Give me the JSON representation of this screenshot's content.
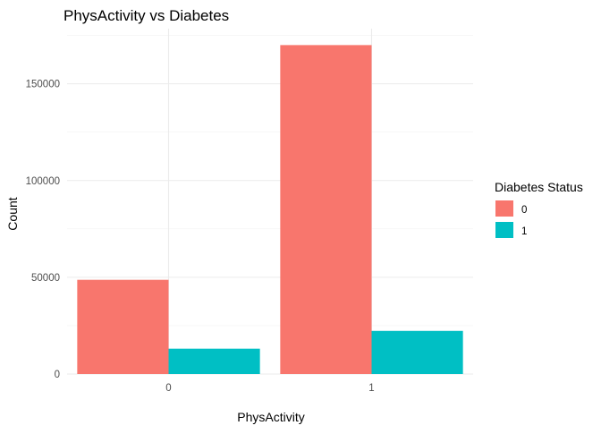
{
  "chart_data": {
    "type": "bar",
    "title": "PhysActivity vs Diabetes",
    "xlabel": "PhysActivity",
    "ylabel": "Count",
    "categories": [
      "0",
      "1"
    ],
    "series": [
      {
        "name": "0",
        "color": "#F8766D",
        "values": [
          48700,
          170000
        ]
      },
      {
        "name": "1",
        "color": "#00BFC4",
        "values": [
          13100,
          22300
        ]
      }
    ],
    "yticks": [
      0,
      50000,
      100000,
      150000
    ],
    "ylim": [
      0,
      178500
    ],
    "grid": true,
    "legend": {
      "title": "Diabetes Status",
      "placement": "right",
      "entries": [
        "0",
        "1"
      ]
    }
  }
}
